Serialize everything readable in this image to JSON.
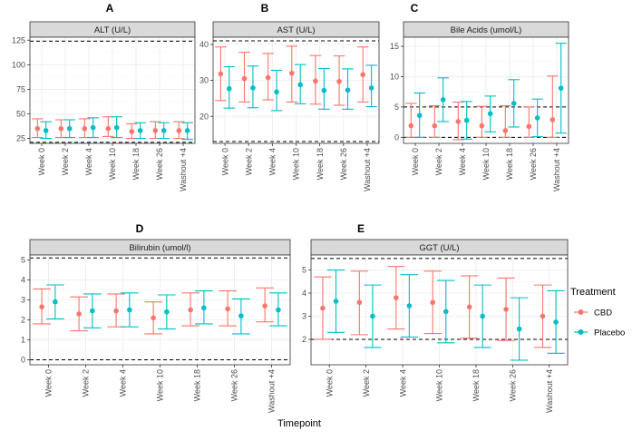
{
  "chart_data": [
    {
      "type": "errorbar",
      "letter": "A",
      "title": "ALT (U/L)",
      "xlabel": "Timepoint",
      "ylabel": "",
      "ylim": [
        20,
        128
      ],
      "yticks": [
        25,
        50,
        75,
        100,
        125
      ],
      "reference_lines": [
        21,
        124
      ],
      "categories": [
        "Week 0",
        "Week 2",
        "Week 4",
        "Week 10",
        "Week 18",
        "Week 26",
        "Washout +4"
      ],
      "series": [
        {
          "name": "CBD",
          "color": "#F8766D",
          "mean": [
            35,
            35,
            35,
            35,
            32,
            33,
            33
          ],
          "lower": [
            26,
            26,
            26,
            27,
            25,
            25,
            25
          ],
          "upper": [
            45,
            44,
            45,
            47,
            40,
            42,
            42
          ]
        },
        {
          "name": "Placebo",
          "color": "#00BFC4",
          "mean": [
            33,
            35,
            36,
            36,
            33,
            33,
            33
          ],
          "lower": [
            25,
            26,
            26,
            26,
            25,
            25,
            24
          ],
          "upper": [
            42,
            44,
            46,
            47,
            41,
            41,
            41
          ]
        }
      ]
    },
    {
      "type": "errorbar",
      "letter": "B",
      "title": "AST (U/L)",
      "xlabel": "Timepoint",
      "ylabel": "",
      "ylim": [
        12.5,
        42
      ],
      "yticks": [
        20,
        30,
        40
      ],
      "reference_lines": [
        13,
        41
      ],
      "categories": [
        "Week 0",
        "Week 2",
        "Week 4",
        "Week 10",
        "Week 18",
        "Week 26",
        "Washout +4"
      ],
      "series": [
        {
          "name": "CBD",
          "color": "#F8766D",
          "mean": [
            31.8,
            30.5,
            30.8,
            32.0,
            29.8,
            29.7,
            31.6
          ],
          "lower": [
            24.4,
            24.0,
            24.6,
            24.0,
            23.4,
            23.1,
            24.0
          ],
          "upper": [
            39.3,
            37.8,
            37.5,
            39.5,
            36.9,
            36.8,
            39.3
          ]
        },
        {
          "name": "Placebo",
          "color": "#00BFC4",
          "mean": [
            27.7,
            27.9,
            26.8,
            28.8,
            27.2,
            27.3,
            27.9
          ],
          "lower": [
            22.3,
            22.4,
            21.6,
            23.5,
            22.0,
            22.0,
            22.7
          ],
          "upper": [
            33.8,
            34.0,
            32.8,
            34.4,
            33.3,
            33.2,
            34.2
          ]
        }
      ]
    },
    {
      "type": "errorbar",
      "letter": "C",
      "title": "Bile Acids (umol/L)",
      "xlabel": "Timepoint",
      "ylabel": "",
      "ylim": [
        -1,
        16.5
      ],
      "yticks": [
        0,
        5,
        10,
        15
      ],
      "reference_lines": [
        0,
        5
      ],
      "categories": [
        "Week 0",
        "Week 2",
        "Week 4",
        "Week 10",
        "Week 18",
        "Week 26",
        "Washout +4"
      ],
      "series": [
        {
          "name": "CBD",
          "color": "#F8766D",
          "mean": [
            1.9,
            1.9,
            2.6,
            1.9,
            1.1,
            1.8,
            2.9
          ],
          "lower": [
            0.0,
            0.0,
            -0.4,
            0.0,
            0.0,
            0.0,
            0.0
          ],
          "upper": [
            5.6,
            5.2,
            5.8,
            5.1,
            5.2,
            5.0,
            10.1
          ]
        },
        {
          "name": "Placebo",
          "color": "#00BFC4",
          "mean": [
            3.6,
            6.2,
            2.8,
            3.9,
            5.6,
            3.2,
            8.1
          ],
          "lower": [
            0.0,
            2.6,
            -0.3,
            0.9,
            1.7,
            0.1,
            0.7
          ],
          "upper": [
            7.3,
            9.8,
            5.9,
            6.8,
            9.5,
            6.3,
            15.5
          ]
        }
      ]
    },
    {
      "type": "errorbar",
      "letter": "D",
      "title": "Bilirubin (umol/l)",
      "xlabel": "Timepoint",
      "ylabel": "",
      "ylim": [
        -0.25,
        5.25
      ],
      "yticks": [
        0,
        1,
        2,
        3,
        4,
        5
      ],
      "reference_lines": [
        0,
        5.1
      ],
      "categories": [
        "Week 0",
        "Week 2",
        "Week 4",
        "Week 10",
        "Week 18",
        "Week 26",
        "Washout +4"
      ],
      "series": [
        {
          "name": "CBD",
          "color": "#F8766D",
          "mean": [
            2.65,
            2.3,
            2.45,
            2.1,
            2.5,
            2.55,
            2.7
          ],
          "lower": [
            1.8,
            1.45,
            1.65,
            1.3,
            1.7,
            1.7,
            1.9
          ],
          "upper": [
            3.55,
            3.15,
            3.3,
            2.9,
            3.35,
            3.45,
            3.6
          ]
        },
        {
          "name": "Placebo",
          "color": "#00BFC4",
          "mean": [
            2.9,
            2.45,
            2.5,
            2.4,
            2.6,
            2.2,
            2.5
          ],
          "lower": [
            2.05,
            1.6,
            1.65,
            1.55,
            1.8,
            1.3,
            1.7
          ],
          "upper": [
            3.75,
            3.3,
            3.35,
            3.25,
            3.45,
            3.05,
            3.35
          ]
        }
      ]
    },
    {
      "type": "errorbar",
      "letter": "E",
      "title": "GGT (U/L)",
      "xlabel": "Timepoint",
      "ylabel": "",
      "ylim": [
        0.9,
        5.65
      ],
      "yticks": [
        2,
        3,
        4,
        5
      ],
      "reference_lines": [
        2,
        5.5
      ],
      "categories": [
        "Week 0",
        "Week 2",
        "Week 4",
        "Week 10",
        "Week 18",
        "Week 26",
        "Washout +4"
      ],
      "series": [
        {
          "name": "CBD",
          "color": "#F8766D",
          "mean": [
            3.35,
            3.6,
            3.8,
            3.6,
            3.4,
            3.3,
            3.0
          ],
          "lower": [
            2.0,
            2.2,
            2.45,
            2.25,
            2.05,
            1.95,
            1.65
          ],
          "upper": [
            4.7,
            4.95,
            5.15,
            4.95,
            4.75,
            4.65,
            4.35
          ]
        },
        {
          "name": "Placebo",
          "color": "#00BFC4",
          "mean": [
            3.65,
            3.0,
            3.45,
            3.2,
            3.0,
            2.45,
            2.75
          ],
          "lower": [
            2.3,
            1.65,
            2.1,
            1.85,
            1.65,
            1.1,
            1.4
          ],
          "upper": [
            5.0,
            4.35,
            4.8,
            4.55,
            4.35,
            3.8,
            4.1
          ]
        }
      ]
    }
  ],
  "legend": {
    "title": "Treatment",
    "items": [
      {
        "label": "CBD",
        "color": "#F8766D"
      },
      {
        "label": "Placebo",
        "color": "#00BFC4"
      }
    ]
  },
  "xlabel": "Timepoint"
}
